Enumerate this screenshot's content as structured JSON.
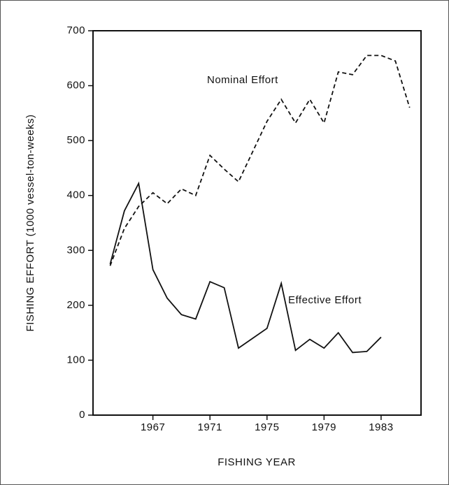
{
  "chart_data": {
    "type": "line",
    "y_label": "FISHING EFFORT (1000 vessel-ton-weeks)",
    "x_label": "FISHING YEAR",
    "x": [
      1964,
      1965,
      1966,
      1967,
      1968,
      1969,
      1970,
      1971,
      1972,
      1973,
      1974,
      1975,
      1976,
      1977,
      1978,
      1979,
      1980,
      1981,
      1982,
      1983,
      1984,
      1985
    ],
    "series": [
      {
        "name": "Nominal Effort",
        "color": "#111111",
        "dash": true,
        "values": [
          272,
          340,
          380,
          405,
          385,
          412,
          400,
          473,
          448,
          425,
          480,
          535,
          575,
          532,
          575,
          532,
          625,
          620,
          655,
          655,
          645,
          560
        ]
      },
      {
        "name": "Effective Effort",
        "color": "#111111",
        "dash": false,
        "values": [
          275,
          372,
          422,
          265,
          213,
          183,
          175,
          243,
          232,
          122,
          140,
          158,
          240,
          118,
          138,
          122,
          150,
          114,
          116,
          142,
          null,
          null
        ]
      }
    ],
    "xlim": [
      1962.8,
      1985.8
    ],
    "xticks": [
      1967,
      1971,
      1975,
      1979,
      1983
    ],
    "ylim": [
      0,
      700
    ],
    "yticks": [
      0,
      100,
      200,
      300,
      400,
      500,
      600,
      700
    ]
  }
}
